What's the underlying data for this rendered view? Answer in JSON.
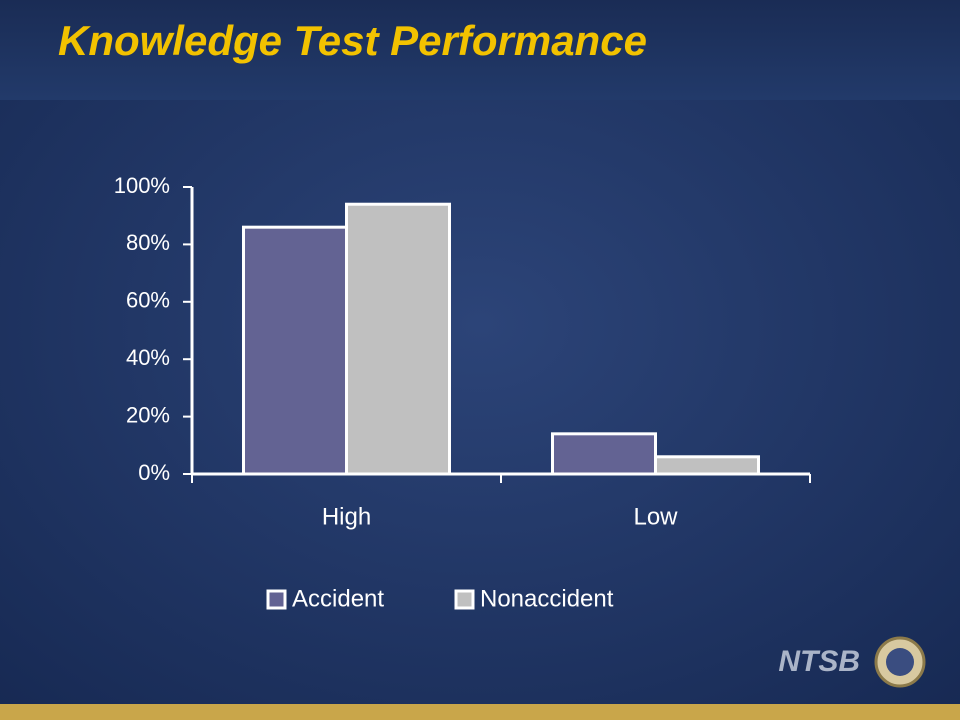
{
  "chart_data": {
    "type": "bar",
    "title": "Knowledge Test Performance",
    "categories": [
      "High",
      "Low"
    ],
    "series": [
      {
        "name": "Accident",
        "color": "#636393",
        "values": [
          86,
          14
        ]
      },
      {
        "name": "Nonaccident",
        "color": "#c0c0c0",
        "values": [
          94,
          6
        ]
      }
    ],
    "ylim": [
      0,
      100
    ],
    "yticks": [
      {
        "value": 0,
        "label": "0%"
      },
      {
        "value": 20,
        "label": "20%"
      },
      {
        "value": 40,
        "label": "40%"
      },
      {
        "value": 60,
        "label": "60%"
      },
      {
        "value": 80,
        "label": "80%"
      },
      {
        "value": 100,
        "label": "100%"
      }
    ],
    "legend": "bottom"
  },
  "slide": {
    "logo": "NTSB"
  }
}
